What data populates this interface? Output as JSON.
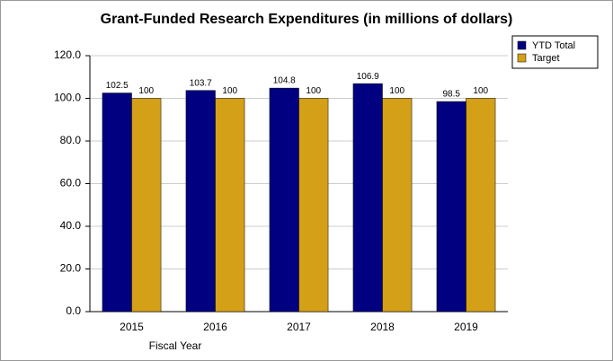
{
  "chart_data": {
    "type": "bar",
    "title": "Grant-Funded Research Expenditures (in millions of dollars)",
    "x_label": "Fiscal Year",
    "categories": [
      "2015",
      "2016",
      "2017",
      "2018",
      "2019"
    ],
    "series": [
      {
        "name": "YTD Total",
        "color": "#000080",
        "values": [
          102.5,
          103.7,
          104.8,
          106.9,
          98.5
        ]
      },
      {
        "name": "Target",
        "color": "#d4a017",
        "values": [
          100,
          100,
          100,
          100,
          100
        ]
      }
    ],
    "ylim": [
      0,
      120
    ],
    "yticks": [
      {
        "value": 0,
        "label": "0.0"
      },
      {
        "value": 20,
        "label": "20.0"
      },
      {
        "value": 40,
        "label": "40.0"
      },
      {
        "value": 60,
        "label": "60.0"
      },
      {
        "value": 80,
        "label": "80.0"
      },
      {
        "value": 100,
        "label": "100.0"
      },
      {
        "value": 120,
        "label": "120.0"
      }
    ],
    "grid": true,
    "legend": "top-right"
  }
}
